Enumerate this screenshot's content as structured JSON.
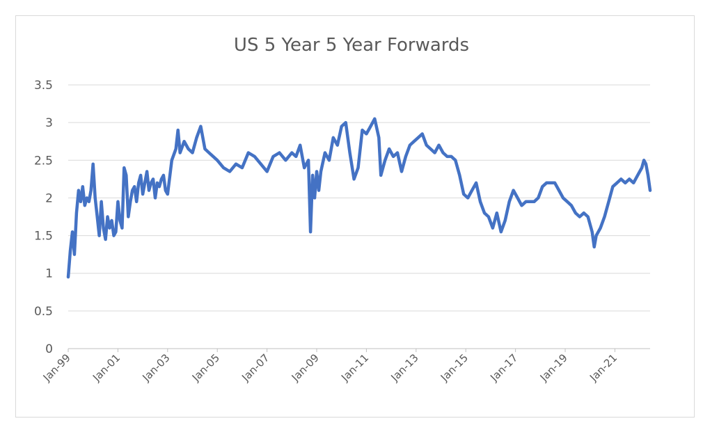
{
  "chart_data": {
    "type": "line",
    "title": "US 5 Year 5 Year Forwards",
    "xlabel": "",
    "ylabel": "",
    "ylim": [
      0,
      3.5
    ],
    "yticks": [
      "0",
      "0.5",
      "1",
      "1.5",
      "2",
      "2.5",
      "3",
      "3.5"
    ],
    "xlim": [
      "1999-01",
      "2022-06"
    ],
    "xticks": [
      "Jan-99",
      "Jan-01",
      "Jan-03",
      "Jan-05",
      "Jan-07",
      "Jan-09",
      "Jan-11",
      "Jan-13",
      "Jan-15",
      "Jan-17",
      "Jan-19",
      "Jan-21"
    ],
    "grid": "horizontal",
    "legend": "none",
    "series_color": "#4472c4",
    "series": [
      {
        "x": [
          "1999-01",
          "1999-02",
          "1999-03",
          "1999-04",
          "1999-05",
          "1999-06",
          "1999-07",
          "1999-08",
          "1999-09",
          "1999-10",
          "1999-11",
          "1999-12",
          "2000-01",
          "2000-02",
          "2000-03",
          "2000-04",
          "2000-05",
          "2000-06",
          "2000-07",
          "2000-08",
          "2000-09",
          "2000-10",
          "2000-11",
          "2000-12",
          "2001-01",
          "2001-02",
          "2001-03",
          "2001-04",
          "2001-05",
          "2001-06",
          "2001-07",
          "2001-08",
          "2001-09",
          "2001-10",
          "2001-11",
          "2001-12",
          "2002-01",
          "2002-02",
          "2002-03",
          "2002-04",
          "2002-05",
          "2002-06",
          "2002-07",
          "2002-08",
          "2002-09",
          "2002-10",
          "2002-11",
          "2002-12",
          "2003-01",
          "2003-03",
          "2003-05",
          "2003-06",
          "2003-07",
          "2003-09",
          "2003-11",
          "2004-01",
          "2004-03",
          "2004-05",
          "2004-07",
          "2004-09",
          "2004-11",
          "2005-01",
          "2005-04",
          "2005-07",
          "2005-10",
          "2006-01",
          "2006-04",
          "2006-07",
          "2006-10",
          "2007-01",
          "2007-04",
          "2007-07",
          "2007-10",
          "2008-01",
          "2008-03",
          "2008-05",
          "2008-07",
          "2008-09",
          "2008-10",
          "2008-11",
          "2008-12",
          "2009-01",
          "2009-02",
          "2009-03",
          "2009-05",
          "2009-07",
          "2009-09",
          "2009-11",
          "2010-01",
          "2010-03",
          "2010-05",
          "2010-07",
          "2010-09",
          "2010-11",
          "2011-01",
          "2011-03",
          "2011-05",
          "2011-07",
          "2011-08",
          "2011-10",
          "2011-12",
          "2012-02",
          "2012-04",
          "2012-06",
          "2012-08",
          "2012-10",
          "2012-12",
          "2013-02",
          "2013-04",
          "2013-06",
          "2013-08",
          "2013-10",
          "2013-12",
          "2014-02",
          "2014-04",
          "2014-06",
          "2014-08",
          "2014-10",
          "2014-12",
          "2015-02",
          "2015-04",
          "2015-06",
          "2015-08",
          "2015-10",
          "2015-12",
          "2016-02",
          "2016-04",
          "2016-06",
          "2016-08",
          "2016-10",
          "2016-12",
          "2017-02",
          "2017-04",
          "2017-06",
          "2017-08",
          "2017-10",
          "2017-12",
          "2018-02",
          "2018-04",
          "2018-06",
          "2018-08",
          "2018-10",
          "2018-12",
          "2019-02",
          "2019-04",
          "2019-06",
          "2019-08",
          "2019-10",
          "2019-12",
          "2020-02",
          "2020-03",
          "2020-04",
          "2020-06",
          "2020-08",
          "2020-10",
          "2020-12",
          "2021-02",
          "2021-04",
          "2021-06",
          "2021-08",
          "2021-10",
          "2021-12",
          "2022-02",
          "2022-03",
          "2022-04",
          "2022-05",
          "2022-06"
        ],
        "values": [
          0.95,
          1.3,
          1.55,
          1.25,
          1.8,
          2.1,
          1.95,
          2.15,
          1.9,
          2.0,
          1.95,
          2.1,
          2.45,
          2.0,
          1.75,
          1.5,
          1.95,
          1.6,
          1.45,
          1.75,
          1.6,
          1.7,
          1.5,
          1.55,
          1.95,
          1.7,
          1.6,
          2.4,
          2.3,
          1.75,
          1.95,
          2.1,
          2.15,
          1.95,
          2.2,
          2.3,
          2.05,
          2.2,
          2.35,
          2.1,
          2.2,
          2.25,
          2.0,
          2.2,
          2.15,
          2.25,
          2.3,
          2.1,
          2.05,
          2.5,
          2.65,
          2.9,
          2.6,
          2.75,
          2.65,
          2.6,
          2.8,
          2.95,
          2.65,
          2.6,
          2.55,
          2.5,
          2.4,
          2.35,
          2.45,
          2.4,
          2.6,
          2.55,
          2.45,
          2.35,
          2.55,
          2.6,
          2.5,
          2.6,
          2.55,
          2.7,
          2.4,
          2.5,
          1.55,
          2.3,
          2.0,
          2.35,
          2.1,
          2.35,
          2.6,
          2.5,
          2.8,
          2.7,
          2.95,
          3.0,
          2.6,
          2.25,
          2.4,
          2.9,
          2.85,
          2.95,
          3.05,
          2.8,
          2.3,
          2.5,
          2.65,
          2.55,
          2.6,
          2.35,
          2.55,
          2.7,
          2.75,
          2.8,
          2.85,
          2.7,
          2.65,
          2.6,
          2.7,
          2.6,
          2.55,
          2.55,
          2.5,
          2.3,
          2.05,
          2.0,
          2.1,
          2.2,
          1.95,
          1.8,
          1.75,
          1.6,
          1.8,
          1.55,
          1.7,
          1.95,
          2.1,
          2.0,
          1.9,
          1.95,
          1.95,
          1.95,
          2.0,
          2.15,
          2.2,
          2.2,
          2.2,
          2.1,
          2.0,
          1.95,
          1.9,
          1.8,
          1.75,
          1.8,
          1.75,
          1.55,
          1.35,
          1.5,
          1.6,
          1.75,
          1.95,
          2.15,
          2.2,
          2.25,
          2.2,
          2.25,
          2.2,
          2.3,
          2.4,
          2.5,
          2.45,
          2.3,
          2.1
        ]
      }
    ]
  }
}
